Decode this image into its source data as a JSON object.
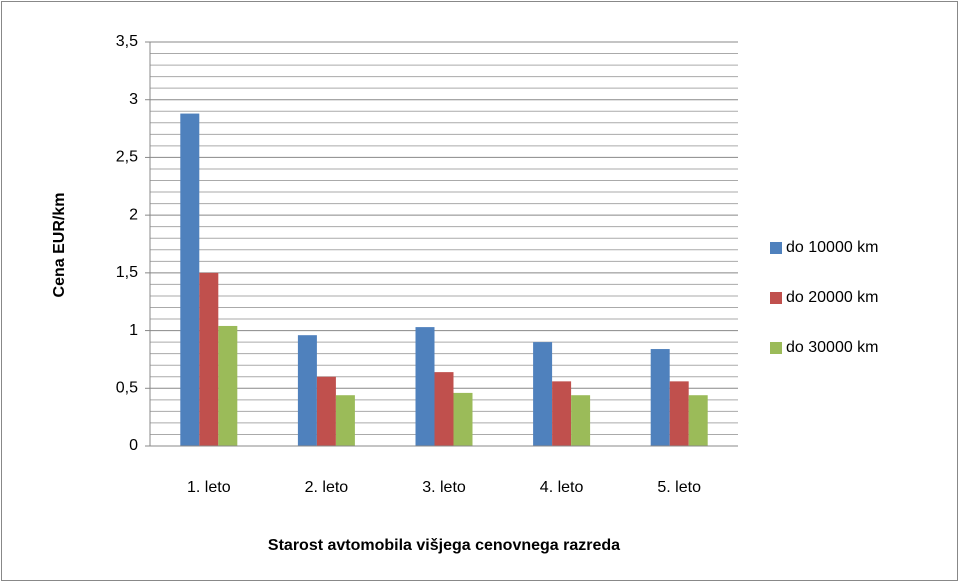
{
  "chart_data": {
    "type": "bar",
    "categories": [
      "1. leto",
      "2. leto",
      "3. leto",
      "4. leto",
      "5. leto"
    ],
    "series": [
      {
        "name": "do 10000 km",
        "color": "#4f81bd",
        "values": [
          2.88,
          0.96,
          1.03,
          0.9,
          0.84
        ]
      },
      {
        "name": "do 20000 km",
        "color": "#c0504d",
        "values": [
          1.5,
          0.6,
          0.64,
          0.56,
          0.56
        ]
      },
      {
        "name": "do 30000 km",
        "color": "#9bbb59",
        "values": [
          1.04,
          0.44,
          0.46,
          0.44,
          0.44
        ]
      }
    ],
    "ylim": [
      0,
      3.5
    ],
    "yticks": [
      0,
      {
        "value": 0.5,
        "label": "0,5"
      },
      1,
      {
        "value": 1.5,
        "label": "1,5"
      },
      2,
      {
        "value": 2.5,
        "label": "2,5"
      },
      3,
      {
        "value": 3.5,
        "label": "3,5"
      }
    ],
    "minor_yticks": [
      0.1,
      0.2,
      0.3,
      0.4,
      0.6,
      0.7,
      0.8,
      0.9,
      1.1,
      1.2,
      1.3,
      1.4,
      1.6,
      1.7,
      1.8,
      1.9,
      2.1,
      2.2,
      2.3,
      2.4,
      2.6,
      2.7,
      2.8,
      2.9,
      3.1,
      3.2,
      3.3,
      3.4
    ],
    "ylabel": "Cena EUR/km",
    "xlabel": "Starost avtomobila višjega cenovnega razreda",
    "grid": true,
    "legend": "right"
  }
}
